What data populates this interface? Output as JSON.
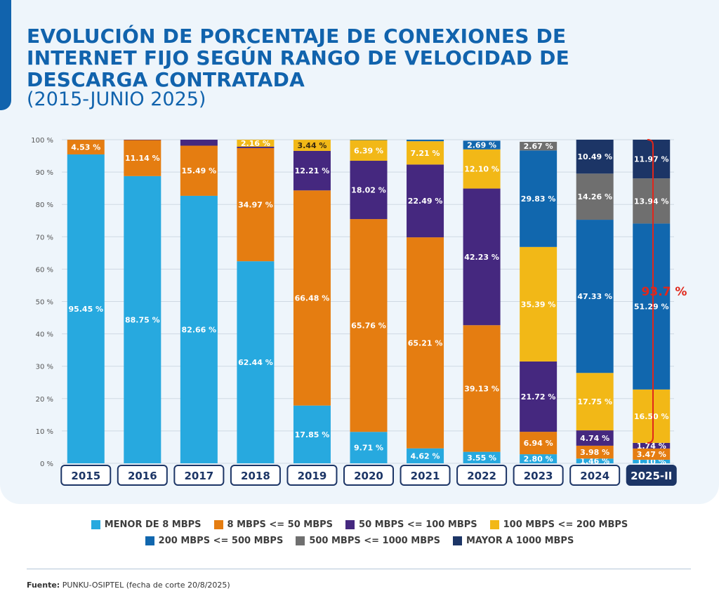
{
  "title": "EVOLUCIÓN DE PORCENTAJE DE CONEXIONES DE INTERNET FIJO SEGÚN RANGO DE VELOCIDAD DE DESCARGA CONTRATADA",
  "subtitle": "(2015-JUNIO 2025)",
  "source_label": "Fuente:",
  "source_text": "PUNKU-OSIPTEL (fecha de corte 20/8/2025)",
  "chart_data": {
    "type": "bar",
    "stacked": true,
    "categories": [
      "2015",
      "2016",
      "2017",
      "2018",
      "2019",
      "2020",
      "2021",
      "2022",
      "2023",
      "2024",
      "2025-II"
    ],
    "ylim": [
      0,
      100
    ],
    "yticks": [
      "0 %",
      "10 %",
      "20 %",
      "30 %",
      "40 %",
      "50 %",
      "60 %",
      "70 %",
      "80 %",
      "90 %",
      "100 %"
    ],
    "grid": true,
    "legend_position": "bottom",
    "series": [
      {
        "name": "MENOR DE 8 MBPS",
        "color": "#27a9df",
        "values": [
          95.45,
          88.75,
          82.66,
          62.44,
          17.85,
          9.71,
          4.62,
          3.55,
          2.8,
          1.46,
          1.1
        ],
        "labels": [
          "95.45 %",
          "88.75 %",
          "82.66 %",
          "62.44 %",
          "17.85 %",
          "9.71 %",
          "4.62 %",
          "3.55 %",
          "2.80 %",
          "1.46 %",
          "1.10 %"
        ]
      },
      {
        "name": "8 MBPS <= 50 MBPS",
        "color": "#e57d11",
        "values": [
          4.53,
          11.14,
          15.49,
          34.97,
          66.48,
          65.76,
          65.21,
          39.13,
          6.94,
          3.98,
          3.47
        ],
        "labels": [
          "4.53 %",
          "11.14 %",
          "15.49 %",
          "34.97 %",
          "66.48 %",
          "65.76 %",
          "65.21 %",
          "39.13  %",
          "6.94 %",
          "3.98 %",
          "3.47 %"
        ]
      },
      {
        "name": "50 MBPS <= 100 MBPS",
        "color": "#45287f",
        "values": [
          0.02,
          0.11,
          1.85,
          0.43,
          12.21,
          18.02,
          22.49,
          42.23,
          21.72,
          4.74,
          1.74
        ],
        "labels": [
          "",
          "",
          "",
          "",
          "12.21 %",
          "18.02 %",
          "22.49 %",
          "42.23 %",
          "21.72 %",
          "4.74 %",
          "1.74 %"
        ]
      },
      {
        "name": "100 MBPS <= 200 MBPS",
        "color": "#f2b817",
        "values": [
          0,
          0,
          0,
          2.16,
          3.44,
          6.39,
          7.21,
          12.1,
          35.39,
          17.75,
          16.5
        ],
        "labels": [
          "",
          "",
          "",
          "2.16 %",
          "3.44 %",
          "6.39 %",
          "7.21 %",
          "12.10 %",
          "35.39 %",
          "17.75 %",
          "16.50 %"
        ]
      },
      {
        "name": "200 MBPS <= 500 MBPS",
        "color": "#1167ae",
        "values": [
          0,
          0,
          0,
          0,
          0,
          0.12,
          0.47,
          2.69,
          29.83,
          47.33,
          51.29
        ],
        "labels": [
          "",
          "",
          "",
          "",
          "",
          "",
          "",
          "2.69 %",
          "29.83 %",
          "47.33 %",
          "51.29 %"
        ]
      },
      {
        "name": "500 MBPS <= 1000 MBPS",
        "color": "#6f6f6f",
        "values": [
          0,
          0,
          0,
          0,
          0,
          0,
          0,
          0,
          2.67,
          14.26,
          13.94
        ],
        "labels": [
          "",
          "",
          "",
          "",
          "",
          "",
          "",
          "",
          "2.67 %",
          "14.26 %",
          "13.94 %"
        ]
      },
      {
        "name": "MAYOR A 1000 MBPS",
        "color": "#1c3566",
        "values": [
          0,
          0,
          0,
          0,
          0,
          0,
          0,
          0,
          0,
          10.49,
          11.97
        ],
        "labels": [
          "",
          "",
          "",
          "",
          "",
          "",
          "",
          "",
          "",
          "10.49 %",
          "11.97 %"
        ]
      }
    ],
    "annotation": {
      "text": "93.7 %",
      "from": 6.3,
      "to": 100,
      "color": "#e0271b"
    }
  }
}
